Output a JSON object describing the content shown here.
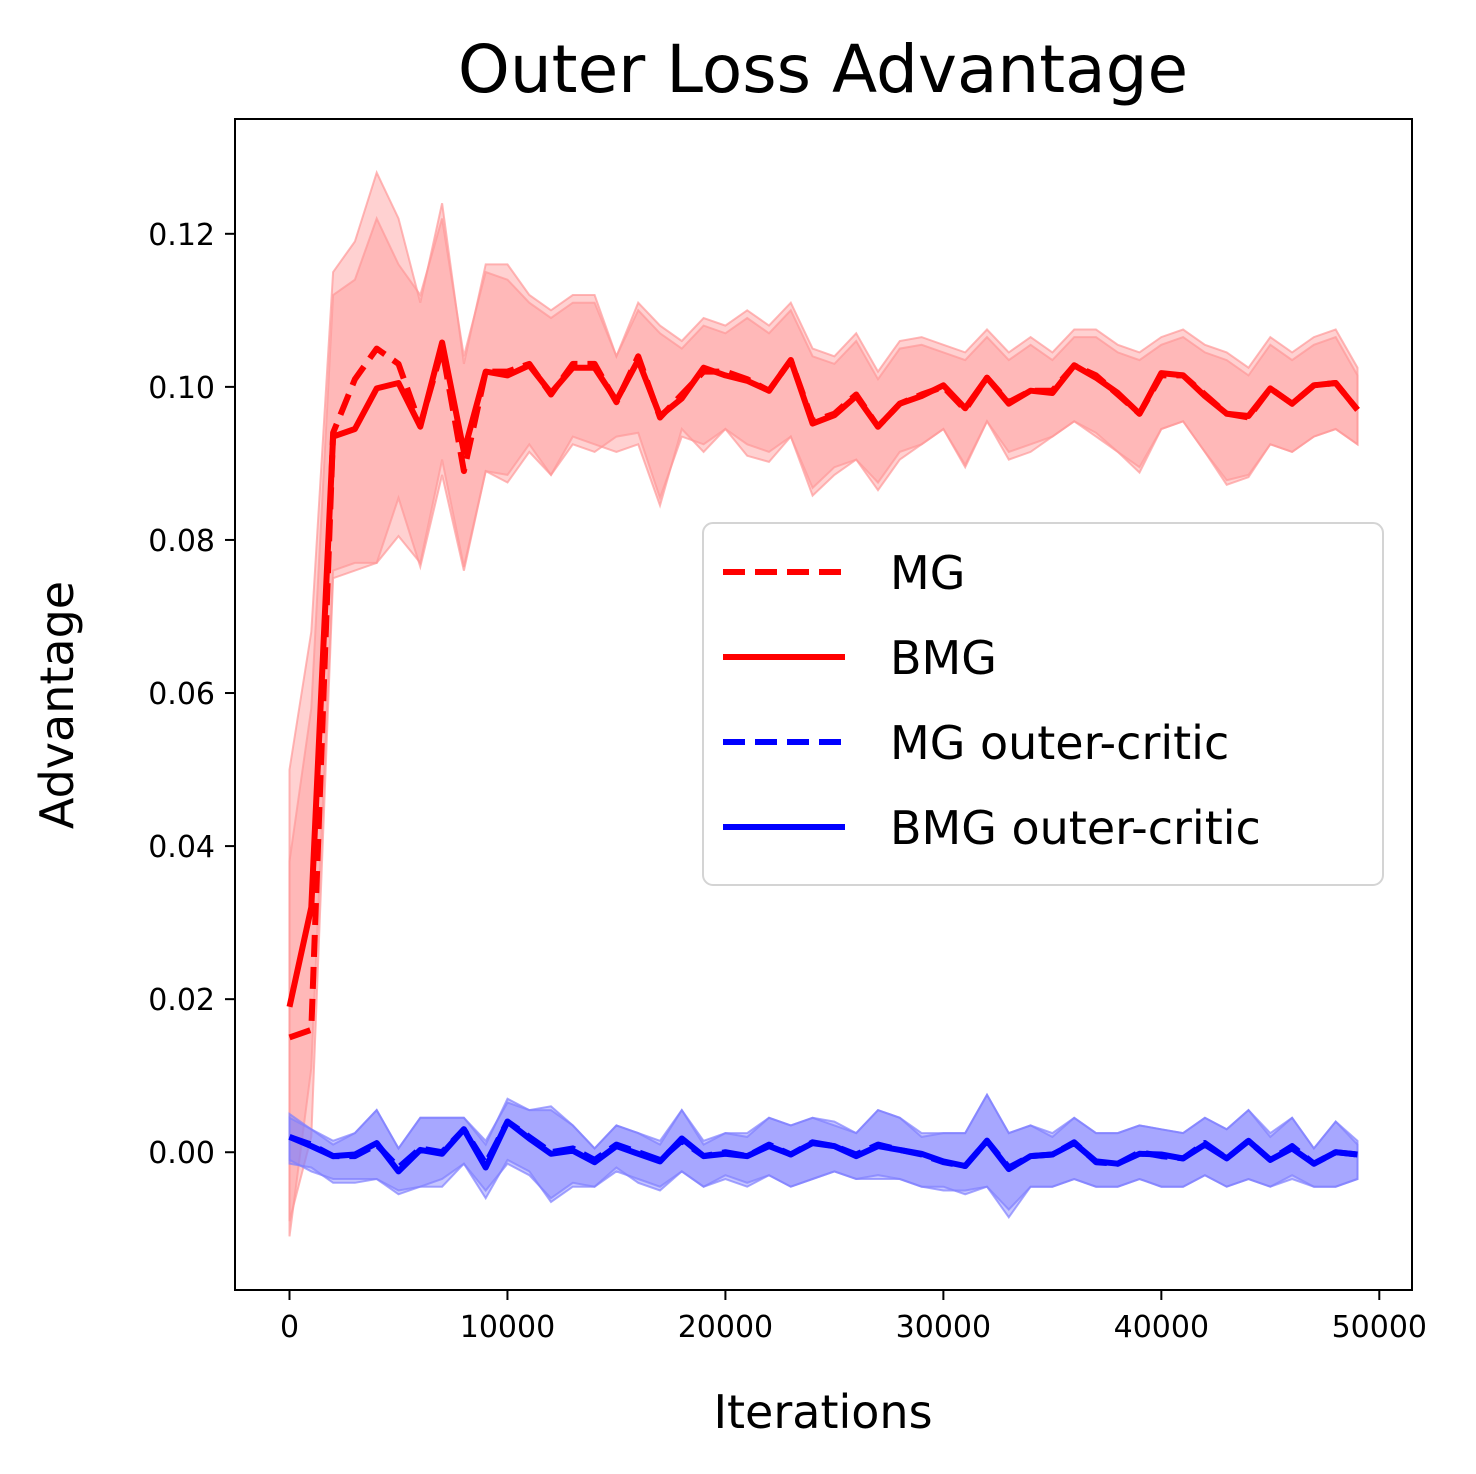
{
  "colors": {
    "mg": "#ff0000",
    "bmg": "#ff0000",
    "mg_outer": "#0000ff",
    "bmg_outer": "#0000ff",
    "mg_band": "#ff9999",
    "bmg_band": "#ff9999",
    "mg_outer_band": "#8080ff",
    "bmg_outer_band": "#8080ff"
  },
  "chart_data": {
    "type": "line",
    "title": "Outer Loss Advantage",
    "xlabel": "Iterations",
    "ylabel": "Advantage",
    "xlim": [
      -2500,
      51500
    ],
    "ylim": [
      -0.018,
      0.135
    ],
    "xticks": [
      0,
      10000,
      20000,
      30000,
      40000,
      50000
    ],
    "xtick_labels": [
      "0",
      "10000",
      "20000",
      "30000",
      "40000",
      "50000"
    ],
    "yticks": [
      0.0,
      0.02,
      0.04,
      0.06,
      0.08,
      0.1,
      0.12
    ],
    "ytick_labels": [
      "0.00",
      "0.02",
      "0.04",
      "0.06",
      "0.08",
      "0.10",
      "0.12"
    ],
    "grid": false,
    "legend_position": "center-right",
    "x": [
      0,
      1000,
      2000,
      3000,
      4000,
      5000,
      6000,
      7000,
      8000,
      9000,
      10000,
      11000,
      12000,
      13000,
      14000,
      15000,
      16000,
      17000,
      18000,
      19000,
      20000,
      21000,
      22000,
      23000,
      24000,
      25000,
      26000,
      27000,
      28000,
      29000,
      30000,
      31000,
      32000,
      33000,
      34000,
      35000,
      36000,
      37000,
      38000,
      39000,
      40000,
      41000,
      42000,
      43000,
      44000,
      45000,
      46000,
      47000,
      48000,
      49000
    ],
    "series": [
      {
        "name": "MG",
        "style": "dashed",
        "color_key": "mg",
        "values": [
          0.015,
          0.016,
          0.094,
          0.101,
          0.105,
          0.103,
          0.095,
          0.105,
          0.089,
          0.102,
          0.102,
          0.103,
          0.099,
          0.103,
          0.103,
          0.098,
          0.104,
          0.096,
          0.099,
          0.102,
          0.102,
          0.101,
          0.0995,
          0.1035,
          0.0955,
          0.0965,
          0.099,
          0.0948,
          0.0978,
          0.099,
          0.1,
          0.097,
          0.1012,
          0.098,
          0.0995,
          0.0995,
          0.1028,
          0.1015,
          0.099,
          0.0965,
          0.1015,
          0.1015,
          0.099,
          0.0965,
          0.096,
          0.0998,
          0.0978,
          0.1002,
          0.1005,
          0.097
        ],
        "lower": [
          -0.011,
          0.011,
          0.076,
          0.077,
          0.077,
          0.0855,
          0.0765,
          0.0885,
          0.076,
          0.089,
          0.0875,
          0.0915,
          0.0885,
          0.0925,
          0.0915,
          0.0935,
          0.094,
          0.0855,
          0.0935,
          0.0925,
          0.0945,
          0.091,
          0.0902,
          0.0935,
          0.0868,
          0.0895,
          0.0905,
          0.0875,
          0.0915,
          0.0925,
          0.0945,
          0.0898,
          0.0955,
          0.0915,
          0.0925,
          0.0935,
          0.0955,
          0.094,
          0.0915,
          0.0895,
          0.0945,
          0.0955,
          0.0915,
          0.0878,
          0.0885,
          0.0925,
          0.0915,
          0.0935,
          0.0945,
          0.0925
        ],
        "upper": [
          0.05,
          0.068,
          0.115,
          0.119,
          0.128,
          0.122,
          0.111,
          0.124,
          0.103,
          0.116,
          0.116,
          0.112,
          0.11,
          0.112,
          0.112,
          0.104,
          0.111,
          0.108,
          0.106,
          0.109,
          0.108,
          0.11,
          0.108,
          0.111,
          0.105,
          0.104,
          0.107,
          0.102,
          0.106,
          0.1065,
          0.1055,
          0.1045,
          0.1075,
          0.1045,
          0.1065,
          0.1045,
          0.1075,
          0.1075,
          0.1055,
          0.1045,
          0.1065,
          0.1075,
          0.1055,
          0.1045,
          0.1025,
          0.1065,
          0.1045,
          0.1065,
          0.1075,
          0.1025
        ]
      },
      {
        "name": "BMG",
        "style": "solid",
        "color_key": "bmg",
        "values": [
          0.019,
          0.032,
          0.0935,
          0.0945,
          0.0998,
          0.1005,
          0.0948,
          0.1058,
          0.0915,
          0.102,
          0.1015,
          0.1028,
          0.0992,
          0.1025,
          0.1025,
          0.0982,
          0.1035,
          0.0962,
          0.0985,
          0.1025,
          0.1015,
          0.1008,
          0.0995,
          0.1035,
          0.0952,
          0.0963,
          0.0988,
          0.0948,
          0.0978,
          0.0988,
          0.1002,
          0.0972,
          0.1012,
          0.0978,
          0.0995,
          0.0992,
          0.1028,
          0.1012,
          0.0992,
          0.0965,
          0.1018,
          0.1015,
          0.0988,
          0.0965,
          0.0962,
          0.0998,
          0.0978,
          0.1002,
          0.1005,
          0.097
        ],
        "lower": [
          -0.009,
          0.002,
          0.075,
          0.076,
          0.077,
          0.0805,
          0.077,
          0.0905,
          0.0765,
          0.089,
          0.0885,
          0.0925,
          0.0885,
          0.0935,
          0.0925,
          0.0915,
          0.0925,
          0.0845,
          0.0945,
          0.0915,
          0.0945,
          0.0925,
          0.0915,
          0.0935,
          0.0858,
          0.0885,
          0.0905,
          0.0865,
          0.0905,
          0.0925,
          0.0945,
          0.0895,
          0.0955,
          0.0905,
          0.0915,
          0.0935,
          0.0955,
          0.0935,
          0.0915,
          0.0888,
          0.0945,
          0.0955,
          0.0915,
          0.0872,
          0.0882,
          0.0925,
          0.0915,
          0.0935,
          0.0945,
          0.0925
        ],
        "upper": [
          0.038,
          0.058,
          0.112,
          0.114,
          0.122,
          0.116,
          0.112,
          0.122,
          0.104,
          0.115,
          0.114,
          0.111,
          0.109,
          0.111,
          0.111,
          0.104,
          0.11,
          0.107,
          0.105,
          0.108,
          0.107,
          0.109,
          0.107,
          0.11,
          0.104,
          0.103,
          0.106,
          0.101,
          0.105,
          0.1055,
          0.1045,
          0.1035,
          0.1065,
          0.1035,
          0.1055,
          0.1035,
          0.1065,
          0.1065,
          0.1045,
          0.1035,
          0.1055,
          0.1065,
          0.1045,
          0.1035,
          0.1015,
          0.1055,
          0.1035,
          0.1055,
          0.1065,
          0.1015
        ]
      },
      {
        "name": "MG outer-critic",
        "style": "dashed",
        "color_key": "mg_outer",
        "values": [
          0.002,
          0.001,
          -0.0005,
          -0.0005,
          0.001,
          -0.002,
          0.0005,
          0.0,
          0.003,
          -0.0015,
          0.004,
          0.002,
          0.0,
          0.0005,
          -0.001,
          0.001,
          0.0,
          -0.001,
          0.0015,
          -0.0005,
          0.0,
          -0.0005,
          0.001,
          -0.0003,
          0.0013,
          0.0008,
          -0.0003,
          0.001,
          0.0003,
          -0.0003,
          -0.0013,
          -0.0018,
          0.0015,
          -0.002,
          -0.0005,
          -0.0003,
          0.0013,
          -0.0013,
          -0.0015,
          0.0,
          -0.0005,
          -0.0008,
          0.0012,
          -0.0008,
          0.0015,
          -0.001,
          0.0008,
          -0.0015,
          0.0,
          -0.0003
        ],
        "lower": [
          -0.0015,
          -0.002,
          -0.004,
          -0.004,
          -0.0035,
          -0.005,
          -0.0045,
          -0.0035,
          -0.0015,
          -0.005,
          -0.0015,
          -0.003,
          -0.006,
          -0.004,
          -0.0045,
          -0.002,
          -0.004,
          -0.005,
          -0.0025,
          -0.0045,
          -0.003,
          -0.004,
          -0.003,
          -0.0045,
          -0.0035,
          -0.0025,
          -0.0035,
          -0.003,
          -0.0035,
          -0.0045,
          -0.005,
          -0.005,
          -0.0045,
          -0.0075,
          -0.0045,
          -0.0045,
          -0.0035,
          -0.0045,
          -0.0045,
          -0.0035,
          -0.0045,
          -0.0045,
          -0.003,
          -0.0045,
          -0.0035,
          -0.0045,
          -0.003,
          -0.0045,
          -0.0045,
          -0.0035
        ],
        "upper": [
          0.005,
          0.003,
          0.001,
          0.0025,
          0.0055,
          0.0005,
          0.0045,
          0.0045,
          0.0045,
          0.001,
          0.007,
          0.0055,
          0.006,
          0.0035,
          0.0005,
          0.0035,
          0.0025,
          0.001,
          0.0055,
          0.001,
          0.0025,
          0.002,
          0.0045,
          0.0035,
          0.0045,
          0.004,
          0.0025,
          0.0055,
          0.0045,
          0.002,
          0.0025,
          0.0025,
          0.0075,
          0.0025,
          0.0035,
          0.002,
          0.0045,
          0.0025,
          0.0025,
          0.0035,
          0.003,
          0.0025,
          0.0045,
          0.003,
          0.0055,
          0.002,
          0.0045,
          0.0005,
          0.004,
          0.001
        ]
      },
      {
        "name": "BMG outer-critic",
        "style": "solid",
        "color_key": "bmg_outer",
        "values": [
          0.002,
          0.0008,
          -0.0005,
          -0.0003,
          0.0012,
          -0.0025,
          0.0003,
          -0.0002,
          0.003,
          -0.002,
          0.004,
          0.0018,
          -0.0002,
          0.0002,
          -0.0013,
          0.0008,
          -0.0002,
          -0.0012,
          0.0018,
          -0.0005,
          -0.0002,
          -0.0005,
          0.0008,
          -0.0003,
          0.0012,
          0.0008,
          -0.0005,
          0.0008,
          0.0003,
          -0.0002,
          -0.0012,
          -0.0018,
          0.0015,
          -0.0022,
          -0.0005,
          -0.0003,
          0.0012,
          -0.0012,
          -0.0015,
          -0.0002,
          -0.0003,
          -0.0008,
          0.001,
          -0.0008,
          0.0015,
          -0.001,
          0.0005,
          -0.0015,
          0.0,
          -0.0003
        ],
        "lower": [
          -0.001,
          -0.0025,
          -0.0035,
          -0.0035,
          -0.0035,
          -0.0055,
          -0.0045,
          -0.0045,
          -0.0015,
          -0.006,
          -0.001,
          -0.0025,
          -0.0065,
          -0.0045,
          -0.0045,
          -0.0025,
          -0.0035,
          -0.0045,
          -0.0025,
          -0.0045,
          -0.0035,
          -0.0045,
          -0.003,
          -0.0045,
          -0.0035,
          -0.0025,
          -0.0035,
          -0.0035,
          -0.0035,
          -0.0045,
          -0.0045,
          -0.0055,
          -0.0045,
          -0.0085,
          -0.0045,
          -0.0045,
          -0.0035,
          -0.0045,
          -0.0045,
          -0.0035,
          -0.0045,
          -0.0045,
          -0.003,
          -0.0045,
          -0.0035,
          -0.0045,
          -0.0035,
          -0.0045,
          -0.0045,
          -0.0035
        ],
        "upper": [
          0.0045,
          0.003,
          0.0015,
          0.0025,
          0.0055,
          0.0005,
          0.0045,
          0.0045,
          0.0045,
          0.0015,
          0.0065,
          0.0055,
          0.0055,
          0.0035,
          0.0005,
          0.0035,
          0.0025,
          0.0015,
          0.0055,
          0.0015,
          0.0025,
          0.0025,
          0.0045,
          0.0035,
          0.0045,
          0.0035,
          0.0025,
          0.0055,
          0.0045,
          0.0025,
          0.0025,
          0.0025,
          0.0075,
          0.0025,
          0.0035,
          0.0025,
          0.0045,
          0.0025,
          0.0025,
          0.0035,
          0.003,
          0.0025,
          0.0045,
          0.003,
          0.0055,
          0.0025,
          0.0045,
          0.0005,
          0.004,
          0.0015
        ]
      }
    ]
  }
}
